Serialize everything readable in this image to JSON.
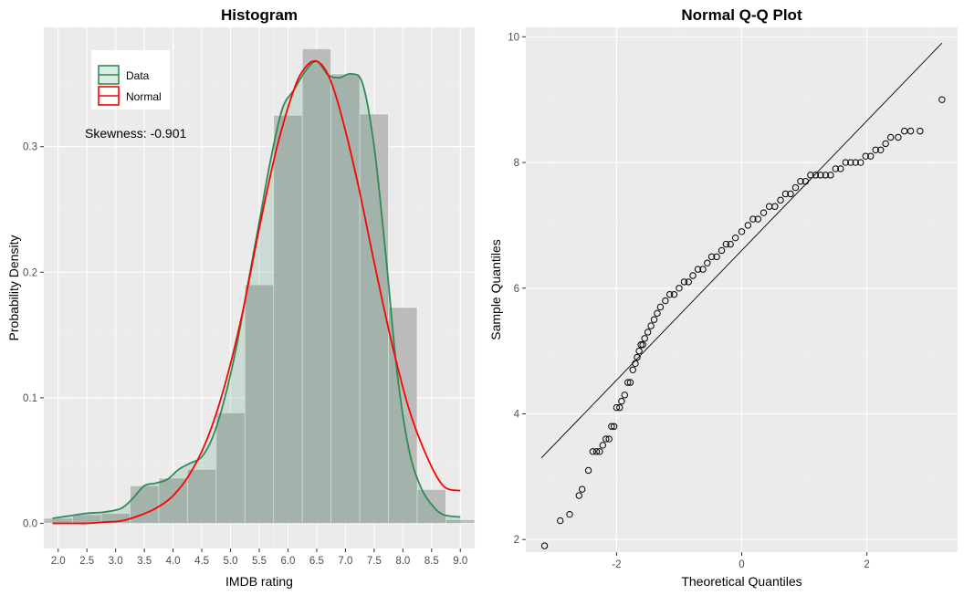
{
  "chart_data": [
    {
      "type": "histogram",
      "title": "Histogram",
      "xlabel": "IMDB rating",
      "ylabel": "Probability Density",
      "xlim": [
        1.75,
        9.25
      ],
      "ylim": [
        -0.02,
        0.395
      ],
      "x_ticks": [
        "2.0",
        "2.5",
        "3.0",
        "3.5",
        "4.0",
        "4.5",
        "5.0",
        "5.5",
        "6.0",
        "6.5",
        "7.0",
        "7.5",
        "8.0",
        "8.5",
        "9.0"
      ],
      "y_ticks": [
        "0.0",
        "0.1",
        "0.2",
        "0.3"
      ],
      "grid": true,
      "legend": {
        "position": "top-left",
        "entries": [
          "Data",
          "Normal"
        ]
      },
      "annotation": "Skewness: -0.901",
      "bins": [
        {
          "x0": 1.75,
          "x1": 2.25,
          "density": 0.004
        },
        {
          "x0": 2.25,
          "x1": 2.75,
          "density": 0.007
        },
        {
          "x0": 2.75,
          "x1": 3.25,
          "density": 0.008
        },
        {
          "x0": 3.25,
          "x1": 3.75,
          "density": 0.03
        },
        {
          "x0": 3.75,
          "x1": 4.25,
          "density": 0.036
        },
        {
          "x0": 4.25,
          "x1": 4.75,
          "density": 0.043
        },
        {
          "x0": 4.75,
          "x1": 5.25,
          "density": 0.088
        },
        {
          "x0": 5.25,
          "x1": 5.75,
          "density": 0.19
        },
        {
          "x0": 5.75,
          "x1": 6.25,
          "density": 0.325
        },
        {
          "x0": 6.25,
          "x1": 6.75,
          "density": 0.378
        },
        {
          "x0": 6.75,
          "x1": 7.25,
          "density": 0.358
        },
        {
          "x0": 7.25,
          "x1": 7.75,
          "density": 0.326
        },
        {
          "x0": 7.75,
          "x1": 8.25,
          "density": 0.172
        },
        {
          "x0": 8.25,
          "x1": 8.75,
          "density": 0.027
        },
        {
          "x0": 8.75,
          "x1": 9.25,
          "density": 0.003
        }
      ],
      "series": [
        {
          "name": "Data",
          "color": "#2e8b57",
          "x": [
            1.9,
            2.2,
            2.5,
            2.8,
            3.1,
            3.3,
            3.5,
            3.7,
            3.9,
            4.1,
            4.3,
            4.5,
            4.7,
            4.9,
            5.1,
            5.3,
            5.5,
            5.7,
            5.9,
            6.1,
            6.3,
            6.5,
            6.7,
            6.9,
            7.1,
            7.3,
            7.5,
            7.7,
            7.9,
            8.1,
            8.3,
            8.5,
            8.7,
            9.0
          ],
          "y": [
            0.004,
            0.006,
            0.008,
            0.009,
            0.012,
            0.02,
            0.03,
            0.032,
            0.035,
            0.043,
            0.048,
            0.053,
            0.07,
            0.1,
            0.14,
            0.19,
            0.24,
            0.29,
            0.33,
            0.345,
            0.36,
            0.368,
            0.357,
            0.355,
            0.358,
            0.35,
            0.3,
            0.215,
            0.12,
            0.06,
            0.03,
            0.015,
            0.007,
            0.005
          ]
        },
        {
          "name": "Normal",
          "color": "#ff0000",
          "x": [
            1.9,
            2.2,
            2.5,
            2.8,
            3.1,
            3.4,
            3.7,
            4.0,
            4.3,
            4.6,
            4.9,
            5.2,
            5.5,
            5.8,
            6.1,
            6.3,
            6.5,
            6.7,
            6.9,
            7.2,
            7.5,
            7.8,
            8.1,
            8.4,
            8.7,
            9.0
          ],
          "y": [
            0.0,
            0.0,
            0.0,
            0.001,
            0.002,
            0.006,
            0.012,
            0.022,
            0.04,
            0.068,
            0.11,
            0.166,
            0.235,
            0.298,
            0.345,
            0.363,
            0.368,
            0.357,
            0.33,
            0.274,
            0.208,
            0.145,
            0.092,
            0.055,
            0.03,
            0.026
          ]
        }
      ]
    },
    {
      "type": "scatter",
      "title": "Normal Q-Q Plot",
      "xlabel": "Theoretical Quantiles",
      "ylabel": "Sample Quantiles",
      "xlim": [
        -3.45,
        3.45
      ],
      "ylim": [
        1.8,
        10.15
      ],
      "x_ticks": [
        "-2",
        "0",
        "2"
      ],
      "y_ticks": [
        "2",
        "4",
        "6",
        "8",
        "10"
      ],
      "grid": true,
      "reference_line": {
        "x": [
          -3.2,
          3.2
        ],
        "y": [
          3.3,
          9.9
        ]
      },
      "points": {
        "x": [
          -3.15,
          -2.9,
          -2.75,
          -2.6,
          -2.55,
          -2.45,
          -2.38,
          -2.32,
          -2.27,
          -2.22,
          -2.17,
          -2.12,
          -2.08,
          -2.04,
          -2.0,
          -1.95,
          -1.92,
          -1.87,
          -1.82,
          -1.78,
          -1.74,
          -1.7,
          -1.67,
          -1.64,
          -1.61,
          -1.58,
          -1.55,
          -1.5,
          -1.45,
          -1.4,
          -1.35,
          -1.3,
          -1.22,
          -1.15,
          -1.08,
          -1.0,
          -0.92,
          -0.85,
          -0.78,
          -0.7,
          -0.62,
          -0.55,
          -0.48,
          -0.4,
          -0.32,
          -0.25,
          -0.18,
          -0.1,
          0.0,
          0.1,
          0.18,
          0.26,
          0.35,
          0.44,
          0.53,
          0.62,
          0.7,
          0.78,
          0.86,
          0.94,
          1.02,
          1.1,
          1.18,
          1.26,
          1.34,
          1.42,
          1.5,
          1.58,
          1.66,
          1.74,
          1.82,
          1.9,
          1.98,
          2.06,
          2.14,
          2.22,
          2.3,
          2.38,
          2.5,
          2.6,
          2.7,
          2.85,
          3.2
        ],
        "y": [
          1.9,
          2.3,
          2.4,
          2.7,
          2.8,
          3.1,
          3.4,
          3.4,
          3.4,
          3.5,
          3.6,
          3.6,
          3.8,
          3.8,
          4.1,
          4.1,
          4.2,
          4.3,
          4.5,
          4.5,
          4.7,
          4.8,
          4.9,
          5.0,
          5.1,
          5.1,
          5.2,
          5.3,
          5.4,
          5.5,
          5.6,
          5.7,
          5.8,
          5.9,
          5.9,
          6.0,
          6.1,
          6.1,
          6.2,
          6.3,
          6.3,
          6.4,
          6.5,
          6.5,
          6.6,
          6.7,
          6.7,
          6.8,
          6.9,
          7.0,
          7.1,
          7.1,
          7.2,
          7.3,
          7.3,
          7.4,
          7.5,
          7.5,
          7.6,
          7.7,
          7.7,
          7.8,
          7.8,
          7.8,
          7.8,
          7.8,
          7.9,
          7.9,
          8.0,
          8.0,
          8.0,
          8.0,
          8.1,
          8.1,
          8.2,
          8.2,
          8.3,
          8.4,
          8.4,
          8.5,
          8.5,
          8.5,
          9.0
        ]
      }
    }
  ]
}
